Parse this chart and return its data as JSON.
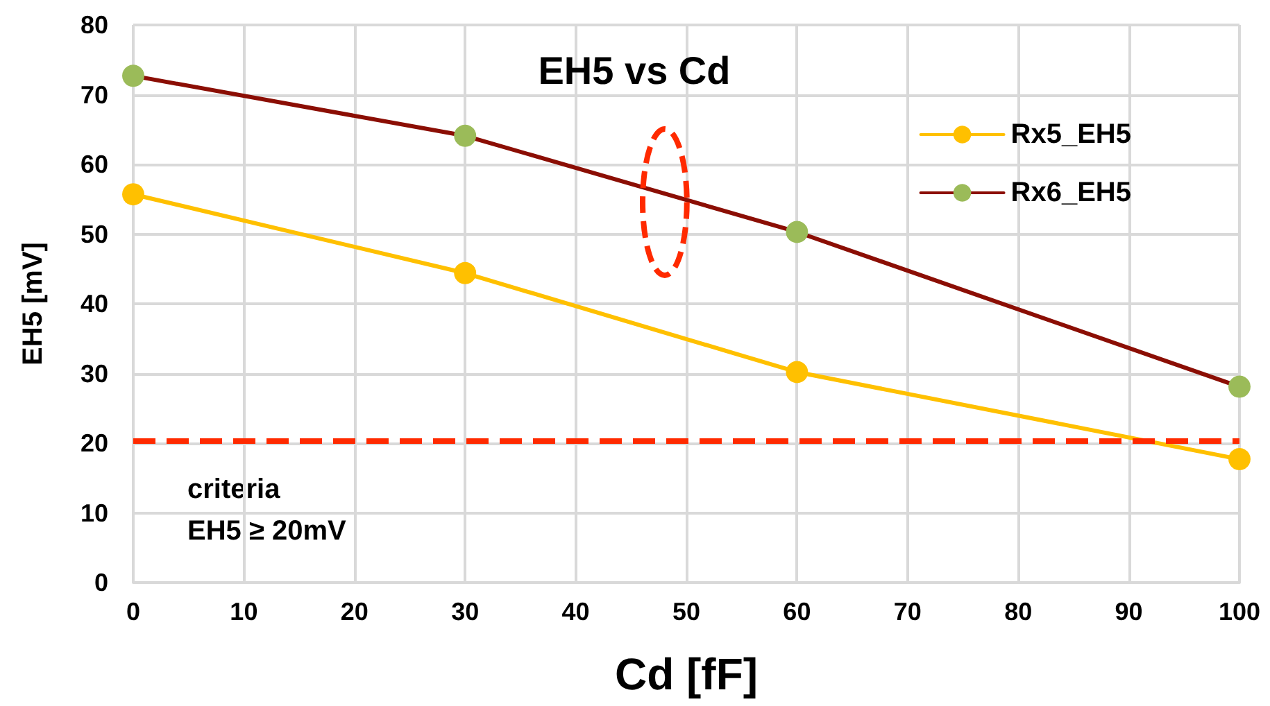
{
  "chart_data": {
    "type": "line",
    "title": "EH5 vs Cd",
    "xlabel": "Cd [fF]",
    "ylabel": "EH5 [mV]",
    "x": [
      0,
      30,
      60,
      100
    ],
    "series": [
      {
        "name": "Rx5_EH5",
        "color": "#ffc000",
        "colors": [
          "#ffc000",
          "#ffc000",
          "#ffc000",
          "#ffc000"
        ],
        "values": [
          55.7,
          44.4,
          30.2,
          17.7
        ]
      },
      {
        "name": "Rx6_EH5",
        "color": "#8b0e04",
        "colors": [
          "#9bbb59",
          "#9bbb59",
          "#9bbb59",
          "#9bbb59"
        ],
        "values": [
          72.7,
          64.1,
          50.3,
          28.1
        ]
      }
    ],
    "xlim": [
      0,
      100
    ],
    "xticks": [
      0,
      10,
      20,
      30,
      40,
      50,
      60,
      70,
      80,
      90,
      100
    ],
    "ylim": [
      0,
      80
    ],
    "yticks": [
      0,
      10,
      20,
      30,
      40,
      50,
      60,
      70,
      80
    ],
    "grid": true,
    "legend": "top right",
    "marker": "circle",
    "line_style": "solid",
    "ref_lines": [
      {
        "axis": "y",
        "value": 20.3,
        "color": "#ff2a00",
        "line_style": "dashed"
      }
    ],
    "annotations": [
      "criteria\nEH5 ≥ 20mV"
    ]
  }
}
